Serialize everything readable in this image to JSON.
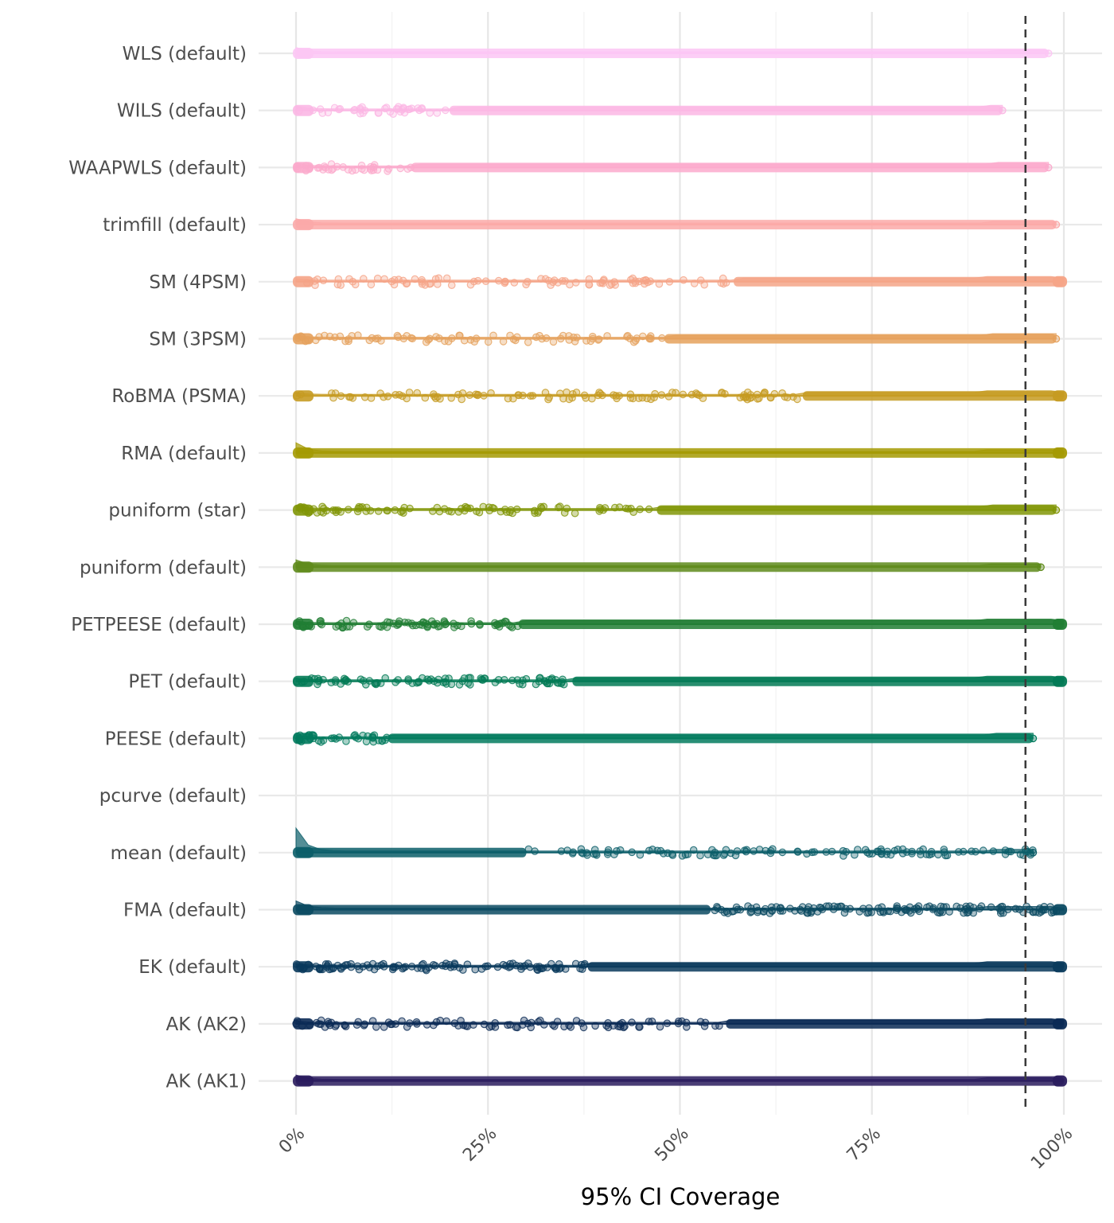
{
  "chart_data": {
    "type": "scatter",
    "subtype": "raincloud (jittered points with half-density)",
    "xlabel": "95% CI Coverage",
    "ylabel": "",
    "xlim": [
      0,
      1
    ],
    "x_ticks": [
      "0%",
      "25%",
      "50%",
      "75%",
      "100%"
    ],
    "x_tick_values": [
      0,
      0.25,
      0.5,
      0.75,
      1.0
    ],
    "x_tick_rotation_deg": -45,
    "reference_line": {
      "x": 0.95,
      "style": "dashed",
      "color": "#3a3a3a"
    },
    "grid": true,
    "legend": "none",
    "series": [
      {
        "name": "WLS (default)",
        "color": "#fcc6f4",
        "dense_from": 0.0,
        "max": 0.98,
        "sparse_count": 0,
        "peak_at_zero": 0.3
      },
      {
        "name": "WILS (default)",
        "color": "#fbb7e4",
        "dense_from": 0.2,
        "max": 0.92,
        "sparse_count": 40,
        "peak_at_zero": 0.2
      },
      {
        "name": "WAAPWLS (default)",
        "color": "#fbaacc",
        "dense_from": 0.15,
        "max": 0.98,
        "sparse_count": 35,
        "peak_at_zero": 0.2
      },
      {
        "name": "trimfill (default)",
        "color": "#fba9a8",
        "dense_from": 0.0,
        "max": 0.99,
        "sparse_count": 0,
        "peak_at_zero": 0.3
      },
      {
        "name": "SM (4PSM)",
        "color": "#f5a487",
        "dense_from": 0.57,
        "max": 1.0,
        "sparse_count": 90,
        "peak_at_zero": 0.1
      },
      {
        "name": "SM (3PSM)",
        "color": "#e5a15c",
        "dense_from": 0.48,
        "max": 0.99,
        "sparse_count": 80,
        "peak_at_zero": 0.1
      },
      {
        "name": "RoBMA (PSMA)",
        "color": "#c69b22",
        "dense_from": 0.66,
        "max": 1.0,
        "sparse_count": 110,
        "peak_at_zero": 0.1
      },
      {
        "name": "RMA (default)",
        "color": "#a49a03",
        "dense_from": 0.0,
        "max": 1.0,
        "sparse_count": 0,
        "peak_at_zero": 0.6
      },
      {
        "name": "puniform (star)",
        "color": "#819607",
        "dense_from": 0.47,
        "max": 0.99,
        "sparse_count": 90,
        "peak_at_zero": 0.2
      },
      {
        "name": "puniform (default)",
        "color": "#5f8b1c",
        "dense_from": 0.0,
        "max": 0.97,
        "sparse_count": 0,
        "peak_at_zero": 0.4
      },
      {
        "name": "PETPEESE (default)",
        "color": "#217e34",
        "dense_from": 0.29,
        "max": 1.0,
        "sparse_count": 80,
        "peak_at_zero": 0.1
      },
      {
        "name": "PET (default)",
        "color": "#027a55",
        "dense_from": 0.36,
        "max": 1.0,
        "sparse_count": 90,
        "peak_at_zero": 0.1
      },
      {
        "name": "PEESE (default)",
        "color": "#027b5e",
        "dense_from": 0.12,
        "max": 0.96,
        "sparse_count": 40,
        "peak_at_zero": 0.1
      },
      {
        "name": "pcurve (default)",
        "color": "#0b6e6f",
        "dense_from": null,
        "max": null,
        "sparse_count": 0,
        "peak_at_zero": 0
      },
      {
        "name": "mean (default)",
        "color": "#0b5e69",
        "dense_from": 0.0,
        "max": 0.96,
        "dense_to": 0.3,
        "sparse_count": 120,
        "peak_at_zero": 1.6
      },
      {
        "name": "FMA (default)",
        "color": "#0b4a62",
        "dense_from": 0.0,
        "max": 1.0,
        "dense_to": 0.54,
        "sparse_count": 140,
        "peak_at_zero": 0.5
      },
      {
        "name": "EK (default)",
        "color": "#0a3a5c",
        "dense_from": 0.38,
        "max": 1.0,
        "sparse_count": 110,
        "peak_at_zero": 0.1
      },
      {
        "name": "AK (AK2)",
        "color": "#0b2a55",
        "dense_from": 0.56,
        "max": 1.0,
        "sparse_count": 100,
        "peak_at_zero": 0.1
      },
      {
        "name": "AK (AK1)",
        "color": "#2a1c5e",
        "dense_from": 0.0,
        "max": 1.0,
        "sparse_count": 0,
        "peak_at_zero": 0.3
      }
    ]
  }
}
